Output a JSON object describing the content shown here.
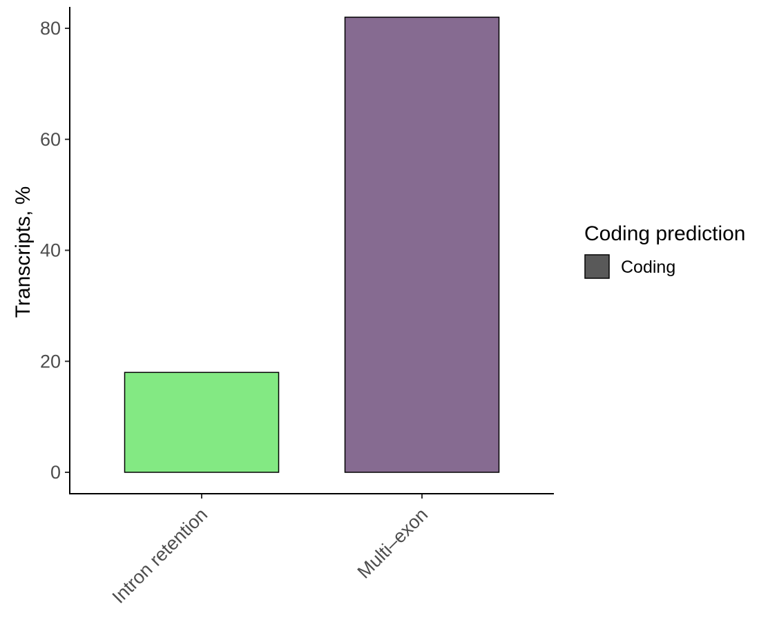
{
  "chart_data": {
    "type": "bar",
    "title": "",
    "xlabel": "",
    "ylabel": "Transcripts, %",
    "categories": [
      "Intron retention",
      "Multi–exon"
    ],
    "values": [
      18,
      82
    ],
    "bar_colors": [
      "#83e983",
      "#866b91"
    ],
    "ylim": [
      0,
      84
    ],
    "yticks": [
      "0",
      "20",
      "40",
      "60",
      "80"
    ],
    "grid": false,
    "legend": {
      "title": "Coding prediction",
      "placement": "right",
      "entries": [
        {
          "label": "Coding",
          "color": "#595959"
        }
      ]
    }
  }
}
